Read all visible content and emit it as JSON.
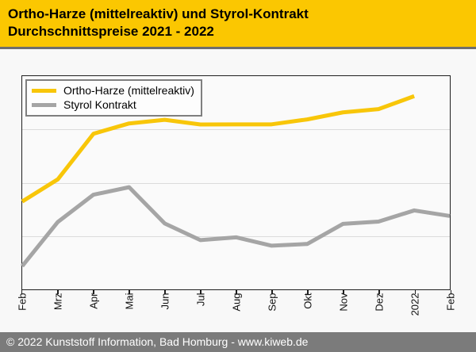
{
  "header": {
    "title_line1": "Ortho-Harze (mittelreaktiv) und Styrol-Kontrakt",
    "title_line2": "Durchschnittspreise 2021 - 2022"
  },
  "legend": {
    "items": [
      {
        "key": "ortho-harze",
        "label": "Ortho-Harze (mittelreaktiv)",
        "color": "#F8C609"
      },
      {
        "key": "styrol-kontrakt",
        "label": "Styrol Kontrakt",
        "color": "#A5A5A5"
      }
    ]
  },
  "footer": {
    "text": "© 2022 Kunststoff Information, Bad Homburg - www.kiweb.de"
  },
  "colors": {
    "header_bg": "#FBC701",
    "header_border": "#6E6E6E",
    "ortho_line": "#F8C609",
    "styrol_line": "#A5A5A5",
    "footer_bg": "#7B7B7B",
    "page_bg": "#F8F8F8",
    "plot_bg": "#FAFAFA",
    "grid": "#DBDBDB",
    "axis": "#1F1F1F"
  },
  "chart_data": {
    "type": "line",
    "title": "Ortho-Harze (mittelreaktiv) und Styrol-Kontrakt Durchschnittspreise 2021 - 2022",
    "categories": [
      "Feb",
      "Mrz",
      "Apr",
      "Mai",
      "Jun",
      "Jul",
      "Aug",
      "Sep",
      "Okt",
      "Nov",
      "Dez",
      "2022",
      "Feb"
    ],
    "series": [
      {
        "key": "ortho-harze",
        "name": "Ortho-Harze (mittelreaktiv)",
        "color": "#F8C609",
        "values": [
          41.2,
          51.6,
          73.0,
          77.8,
          79.5,
          77.3,
          77.4,
          77.4,
          79.7,
          83.0,
          84.5,
          90.6,
          null
        ]
      },
      {
        "key": "styrol-kontrakt",
        "name": "Styrol Kontrakt",
        "color": "#A5A5A5",
        "values": [
          10.9,
          31.6,
          44.4,
          47.9,
          30.9,
          23.1,
          24.4,
          20.5,
          21.3,
          30.7,
          31.8,
          37.0,
          34.4
        ]
      }
    ],
    "xlabel": "",
    "ylabel": "",
    "ylim": [
      0,
      100
    ],
    "y_axis_labels": "none (values are relative, % of plot height; no numeric y scale shown)",
    "grid": "horizontal, 3 lines at 25/50/75%",
    "legend_position": "top-left inside plot"
  }
}
